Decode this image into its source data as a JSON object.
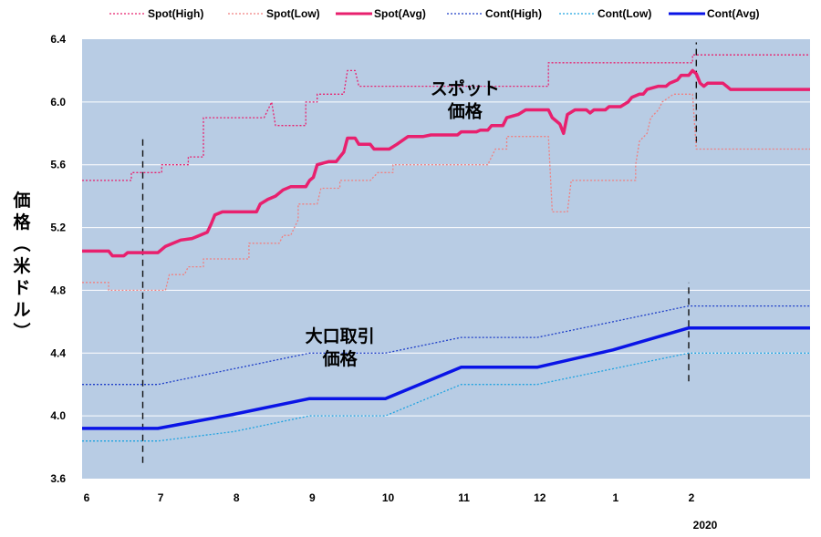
{
  "chart_data": {
    "type": "line",
    "ylabel": "価格（米ドル）",
    "ylim": [
      3.6,
      6.4
    ],
    "yticks": [
      "3.6",
      "4.0",
      "4.4",
      "4.8",
      "5.2",
      "5.6",
      "6.0",
      "6.4"
    ],
    "x_range": [
      0,
      9.6
    ],
    "xticks": [
      {
        "label": "6",
        "x": 0
      },
      {
        "label": "7",
        "x": 1
      },
      {
        "label": "8",
        "x": 2
      },
      {
        "label": "9",
        "x": 3
      },
      {
        "label": "10",
        "x": 4
      },
      {
        "label": "11",
        "x": 5
      },
      {
        "label": "12",
        "x": 6
      },
      {
        "label": "1",
        "x": 7
      },
      {
        "label": "2",
        "x": 8
      }
    ],
    "year_label": "2020",
    "grid": true,
    "legend_position": "top",
    "plot_background": "#b8cce4",
    "series": [
      {
        "name": "Spot(High)",
        "color": "#e8206e",
        "style": "dotted",
        "width": 1.3,
        "points": [
          [
            0,
            5.5
          ],
          [
            0.65,
            5.5
          ],
          [
            0.65,
            5.55
          ],
          [
            1.05,
            5.55
          ],
          [
            1.05,
            5.6
          ],
          [
            1.4,
            5.6
          ],
          [
            1.4,
            5.65
          ],
          [
            1.6,
            5.65
          ],
          [
            1.6,
            5.9
          ],
          [
            2.4,
            5.9
          ],
          [
            2.5,
            6.0
          ],
          [
            2.55,
            5.85
          ],
          [
            2.95,
            5.85
          ],
          [
            2.95,
            6.0
          ],
          [
            3.1,
            6.0
          ],
          [
            3.1,
            6.05
          ],
          [
            3.45,
            6.05
          ],
          [
            3.5,
            6.2
          ],
          [
            3.6,
            6.2
          ],
          [
            3.65,
            6.1
          ],
          [
            6.15,
            6.1
          ],
          [
            6.15,
            6.25
          ],
          [
            8.05,
            6.25
          ],
          [
            8.05,
            6.3
          ],
          [
            9.6,
            6.3
          ]
        ]
      },
      {
        "name": "Spot(Low)",
        "color": "#f08080",
        "style": "dotted",
        "width": 1.3,
        "points": [
          [
            0,
            4.85
          ],
          [
            0.35,
            4.85
          ],
          [
            0.35,
            4.8
          ],
          [
            1.1,
            4.8
          ],
          [
            1.15,
            4.9
          ],
          [
            1.35,
            4.9
          ],
          [
            1.4,
            4.95
          ],
          [
            1.6,
            4.95
          ],
          [
            1.6,
            5.0
          ],
          [
            2.2,
            5.0
          ],
          [
            2.2,
            5.1
          ],
          [
            2.6,
            5.1
          ],
          [
            2.65,
            5.15
          ],
          [
            2.75,
            5.15
          ],
          [
            2.85,
            5.25
          ],
          [
            2.85,
            5.35
          ],
          [
            3.1,
            5.35
          ],
          [
            3.15,
            5.45
          ],
          [
            3.4,
            5.45
          ],
          [
            3.4,
            5.5
          ],
          [
            3.8,
            5.5
          ],
          [
            3.9,
            5.55
          ],
          [
            4.1,
            5.55
          ],
          [
            4.1,
            5.6
          ],
          [
            5.35,
            5.6
          ],
          [
            5.45,
            5.7
          ],
          [
            5.6,
            5.7
          ],
          [
            5.6,
            5.78
          ],
          [
            6.15,
            5.78
          ],
          [
            6.2,
            5.3
          ],
          [
            6.4,
            5.3
          ],
          [
            6.45,
            5.5
          ],
          [
            7.3,
            5.5
          ],
          [
            7.3,
            5.6
          ],
          [
            7.35,
            5.75
          ],
          [
            7.45,
            5.8
          ],
          [
            7.5,
            5.9
          ],
          [
            7.6,
            5.95
          ],
          [
            7.65,
            6.0
          ],
          [
            7.8,
            6.05
          ],
          [
            8.05,
            6.05
          ],
          [
            8.1,
            5.7
          ],
          [
            9.6,
            5.7
          ]
        ]
      },
      {
        "name": "Spot(Avg)",
        "color": "#e8206e",
        "style": "solid",
        "width": 3.5,
        "points": [
          [
            0,
            5.05
          ],
          [
            0.35,
            5.05
          ],
          [
            0.4,
            5.02
          ],
          [
            0.55,
            5.02
          ],
          [
            0.6,
            5.04
          ],
          [
            1.0,
            5.04
          ],
          [
            1.1,
            5.08
          ],
          [
            1.2,
            5.1
          ],
          [
            1.3,
            5.12
          ],
          [
            1.45,
            5.13
          ],
          [
            1.55,
            5.15
          ],
          [
            1.65,
            5.17
          ],
          [
            1.7,
            5.22
          ],
          [
            1.75,
            5.28
          ],
          [
            1.85,
            5.3
          ],
          [
            2.3,
            5.3
          ],
          [
            2.35,
            5.35
          ],
          [
            2.45,
            5.38
          ],
          [
            2.55,
            5.4
          ],
          [
            2.65,
            5.44
          ],
          [
            2.75,
            5.46
          ],
          [
            2.95,
            5.46
          ],
          [
            3.0,
            5.5
          ],
          [
            3.05,
            5.52
          ],
          [
            3.1,
            5.6
          ],
          [
            3.25,
            5.62
          ],
          [
            3.35,
            5.62
          ],
          [
            3.4,
            5.65
          ],
          [
            3.45,
            5.68
          ],
          [
            3.5,
            5.77
          ],
          [
            3.6,
            5.77
          ],
          [
            3.65,
            5.73
          ],
          [
            3.8,
            5.73
          ],
          [
            3.85,
            5.7
          ],
          [
            4.05,
            5.7
          ],
          [
            4.15,
            5.73
          ],
          [
            4.3,
            5.78
          ],
          [
            4.5,
            5.78
          ],
          [
            4.6,
            5.79
          ],
          [
            4.95,
            5.79
          ],
          [
            5.0,
            5.81
          ],
          [
            5.2,
            5.81
          ],
          [
            5.25,
            5.82
          ],
          [
            5.35,
            5.82
          ],
          [
            5.4,
            5.85
          ],
          [
            5.55,
            5.85
          ],
          [
            5.6,
            5.9
          ],
          [
            5.75,
            5.92
          ],
          [
            5.85,
            5.95
          ],
          [
            6.15,
            5.95
          ],
          [
            6.2,
            5.9
          ],
          [
            6.3,
            5.86
          ],
          [
            6.35,
            5.8
          ],
          [
            6.4,
            5.92
          ],
          [
            6.5,
            5.95
          ],
          [
            6.65,
            5.95
          ],
          [
            6.7,
            5.93
          ],
          [
            6.75,
            5.95
          ],
          [
            6.9,
            5.95
          ],
          [
            6.95,
            5.97
          ],
          [
            7.1,
            5.97
          ],
          [
            7.2,
            6.0
          ],
          [
            7.25,
            6.03
          ],
          [
            7.35,
            6.05
          ],
          [
            7.4,
            6.05
          ],
          [
            7.45,
            6.08
          ],
          [
            7.6,
            6.1
          ],
          [
            7.7,
            6.1
          ],
          [
            7.75,
            6.12
          ],
          [
            7.85,
            6.14
          ],
          [
            7.9,
            6.17
          ],
          [
            8.0,
            6.17
          ],
          [
            8.05,
            6.2
          ],
          [
            8.1,
            6.18
          ],
          [
            8.15,
            6.12
          ],
          [
            8.2,
            6.1
          ],
          [
            8.25,
            6.12
          ],
          [
            8.45,
            6.12
          ],
          [
            8.5,
            6.1
          ],
          [
            8.55,
            6.08
          ],
          [
            9.6,
            6.08
          ]
        ]
      },
      {
        "name": "Cont(High)",
        "color": "#1f3fc8",
        "style": "dotted",
        "width": 1.3,
        "points": [
          [
            0,
            4.2
          ],
          [
            1,
            4.2
          ],
          [
            2,
            4.3
          ],
          [
            3,
            4.4
          ],
          [
            4,
            4.4
          ],
          [
            5,
            4.5
          ],
          [
            6,
            4.5
          ],
          [
            7,
            4.6
          ],
          [
            8,
            4.7
          ],
          [
            9.6,
            4.7
          ]
        ]
      },
      {
        "name": "Cont(Low)",
        "color": "#1fa3e0",
        "style": "dotted",
        "width": 1.3,
        "points": [
          [
            0,
            3.84
          ],
          [
            1,
            3.84
          ],
          [
            2,
            3.9
          ],
          [
            3,
            4.0
          ],
          [
            4,
            4.0
          ],
          [
            5,
            4.2
          ],
          [
            6,
            4.2
          ],
          [
            7,
            4.3
          ],
          [
            8,
            4.4
          ],
          [
            9.6,
            4.4
          ]
        ]
      },
      {
        "name": "Cont(Avg)",
        "color": "#0a14e6",
        "style": "solid",
        "width": 3.5,
        "points": [
          [
            0,
            3.92
          ],
          [
            1,
            3.92
          ],
          [
            2,
            4.01
          ],
          [
            3,
            4.11
          ],
          [
            4,
            4.11
          ],
          [
            5,
            4.31
          ],
          [
            6,
            4.31
          ],
          [
            7,
            4.42
          ],
          [
            8,
            4.56
          ],
          [
            9.6,
            4.56
          ]
        ]
      }
    ],
    "markers": [
      {
        "x": 0.8,
        "y_from": 3.7,
        "y_to": 5.78
      },
      {
        "x": 8.1,
        "y_from": 5.74,
        "y_to": 6.38
      },
      {
        "x": 8.0,
        "y_from": 4.22,
        "y_to": 4.85
      }
    ],
    "annotations": [
      {
        "lines": [
          "スポット",
          "価格"
        ],
        "x": 5.05,
        "y": 6.05
      },
      {
        "lines": [
          "大口取引",
          "価格"
        ],
        "x": 3.4,
        "y": 4.47
      }
    ]
  }
}
